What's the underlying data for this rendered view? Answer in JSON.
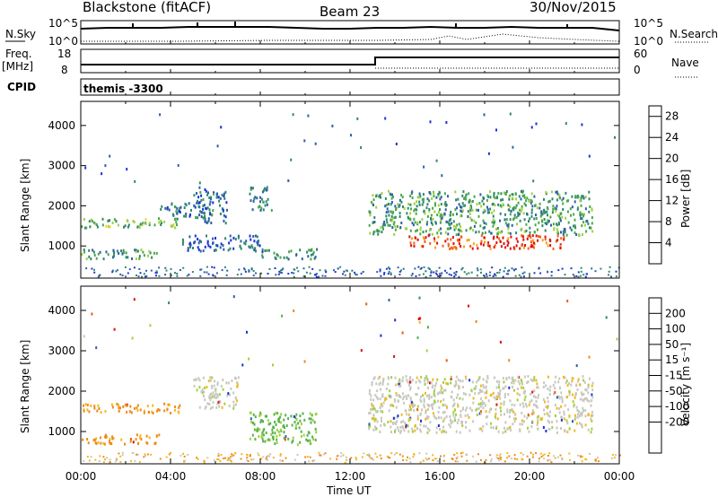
{
  "header": {
    "station": "Blackstone (fitACF)",
    "beam": "Beam 23",
    "date": "30/Nov/2015"
  },
  "panels": {
    "nsky_label": "N.Sky",
    "nsky_ticks": [
      "10^5",
      "10^0"
    ],
    "nsearch_label": "N.Search",
    "nsearch_ticks": [
      "10^5",
      "10^0"
    ],
    "freq_label": "Freq.",
    "freq_unit": "[MHz]",
    "freq_ticks": [
      "18",
      "8"
    ],
    "nave_label": "Nave",
    "nave_ticks": [
      "60",
      "0"
    ],
    "cpid_label": "CPID",
    "cpid_value": "themis -3300"
  },
  "colors": {
    "power_scale": [
      "#1a33d9",
      "#2f5fa8",
      "#2e8a6a",
      "#4aa84a",
      "#9fd23f",
      "#f5cf2a",
      "#f5a21c",
      "#f0641a",
      "#e01010"
    ],
    "velocity_scale": [
      "#1a33d9",
      "#2f5fa8",
      "#2e8a6a",
      "#55b34a",
      "#9fd23f",
      "#c8c8c0",
      "#f5b81c",
      "#f08a1a",
      "#ea5a12",
      "#e01010"
    ]
  },
  "chart_data": [
    {
      "type": "heatmap",
      "name": "power",
      "ylabel": "Slant Range [km]",
      "yticks": [
        1000,
        2000,
        3000,
        4000
      ],
      "ylim": [
        200,
        4600
      ],
      "xticks": [
        "00:00",
        "04:00",
        "08:00",
        "12:00",
        "16:00",
        "20:00",
        "00:00"
      ],
      "xlim_hours": [
        0,
        24
      ],
      "colorbar": {
        "label": "Power [dB]",
        "ticks": [
          4,
          8,
          12,
          16,
          20,
          24,
          28
        ],
        "range": [
          0,
          30
        ]
      },
      "regions": [
        {
          "t0": 0.0,
          "t1": 4.5,
          "r0": 1480,
          "r1": 1720,
          "value": 12
        },
        {
          "t0": 0.0,
          "t1": 3.5,
          "r0": 700,
          "r1": 950,
          "value": 10
        },
        {
          "t0": 3.5,
          "t1": 5.5,
          "r0": 1750,
          "r1": 2100,
          "value": 6
        },
        {
          "t0": 4.5,
          "t1": 8.0,
          "r0": 900,
          "r1": 1300,
          "value": 5
        },
        {
          "t0": 5.0,
          "t1": 6.5,
          "r0": 1600,
          "r1": 2500,
          "value": 6
        },
        {
          "t0": 7.5,
          "t1": 8.5,
          "r0": 1900,
          "r1": 2500,
          "value": 8
        },
        {
          "t0": 8.0,
          "t1": 10.5,
          "r0": 700,
          "r1": 950,
          "value": 8
        },
        {
          "t0": 12.8,
          "t1": 22.8,
          "r0": 1300,
          "r1": 2400,
          "value": 10
        },
        {
          "t0": 14.5,
          "t1": 21.5,
          "r0": 950,
          "r1": 1300,
          "value": 26
        }
      ]
    },
    {
      "type": "heatmap",
      "name": "velocity",
      "ylabel": "Slant Range [km]",
      "yticks": [
        1000,
        2000,
        3000,
        4000
      ],
      "ylim": [
        200,
        4600
      ],
      "xticks": [
        "00:00",
        "04:00",
        "08:00",
        "12:00",
        "16:00",
        "20:00",
        "00:00"
      ],
      "xlim_hours": [
        0,
        24
      ],
      "xlabel": "Time UT",
      "colorbar": {
        "label": "Velocity [m s⁻¹]",
        "ticks": [
          200,
          100,
          50,
          15,
          -15,
          -50,
          -100,
          -200
        ]
      },
      "regions": [
        {
          "t0": 0.0,
          "t1": 4.5,
          "r0": 1480,
          "r1": 1720,
          "value": -60
        },
        {
          "t0": 0.0,
          "t1": 3.5,
          "r0": 700,
          "r1": 950,
          "value": -60
        },
        {
          "t0": 5.0,
          "t1": 7.0,
          "r0": 1600,
          "r1": 2400,
          "value": 0
        },
        {
          "t0": 7.5,
          "t1": 10.5,
          "r0": 700,
          "r1": 1500,
          "value": 40
        },
        {
          "t0": 12.8,
          "t1": 22.8,
          "r0": 1000,
          "r1": 2400,
          "value": 0
        }
      ]
    }
  ]
}
